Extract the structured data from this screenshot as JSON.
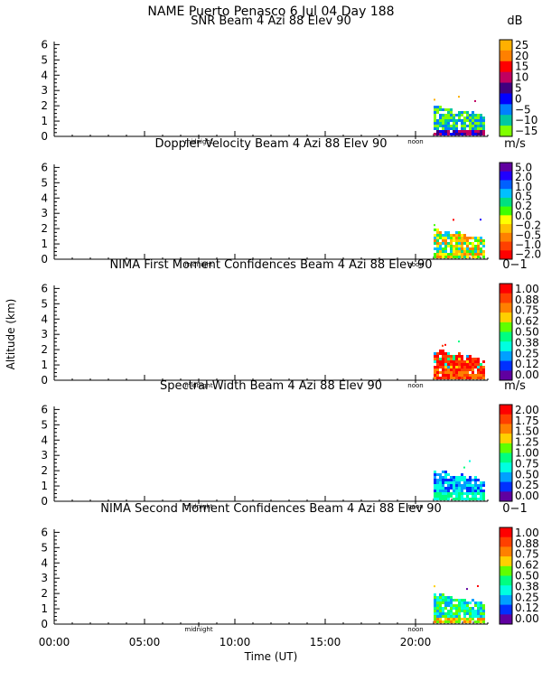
{
  "header": {
    "title_line1": "NAME Puerto Penasco   6 Jul 04 Day 188"
  },
  "axes": {
    "ylabel": "Altitude (km)",
    "xlabel": "Time (UT)",
    "x_ticks": [
      {
        "hour": 0,
        "label": "00:00"
      },
      {
        "hour": 5,
        "label": "05:00"
      },
      {
        "hour": 10,
        "label": "10:00"
      },
      {
        "hour": 15,
        "label": "15:00"
      },
      {
        "hour": 20,
        "label": "20:00"
      }
    ],
    "markers": [
      {
        "hour": 8,
        "label": "midnight"
      },
      {
        "hour": 20,
        "label": "noon"
      }
    ],
    "x_range_hours": [
      0,
      24
    ],
    "y_range_km": [
      0,
      6.2
    ],
    "y_ticks": [
      "0",
      "1",
      "2",
      "3",
      "4",
      "5",
      "6"
    ]
  },
  "chart_data": [
    {
      "type": "heatmap",
      "title": "SNR Beam 4 Azi  88 Elev 90",
      "unit": "dB",
      "colorbar_labels": [
        "25",
        "20",
        "15",
        "10",
        "5",
        "0",
        "−5",
        "−10",
        "−15"
      ],
      "colorbar_colors": [
        "#ffb000",
        "#ff8000",
        "#ff0000",
        "#c00060",
        "#40007f",
        "#0000ff",
        "#0080ff",
        "#00c8a0",
        "#80ff00"
      ],
      "data_extent": {
        "hours": [
          21,
          23.8
        ],
        "altitude_km": [
          0,
          2.6
        ]
      }
    },
    {
      "type": "heatmap",
      "title": "Doppler Velocity Beam 4 Azi  88 Elev 90",
      "unit": "m/s",
      "colorbar_labels": [
        "5.0",
        "2.0",
        "1.0",
        "0.5",
        "0.2",
        "0.0",
        "−0.2",
        "−0.5",
        "−1.0",
        "−2.0"
      ],
      "colorbar_colors": [
        "#6000a0",
        "#2000ff",
        "#0060ff",
        "#00c0ff",
        "#00e080",
        "#40ff00",
        "#ffff00",
        "#ffc000",
        "#ff8000",
        "#ff4000",
        "#ff0000"
      ],
      "data_extent": {
        "hours": [
          21,
          23.8
        ],
        "altitude_km": [
          0,
          2.6
        ]
      }
    },
    {
      "type": "heatmap",
      "title": "NIMA First Moment Confidences Beam 4 Azi  88 Elev 90",
      "unit": "0−1",
      "colorbar_labels": [
        "1.00",
        "0.88",
        "0.75",
        "0.62",
        "0.50",
        "0.38",
        "0.25",
        "0.12",
        "0.00"
      ],
      "colorbar_colors": [
        "#ff0000",
        "#ff4000",
        "#ff8000",
        "#ffd000",
        "#60ff00",
        "#00ff80",
        "#00ffe0",
        "#00a0ff",
        "#0030ff",
        "#6000a0"
      ],
      "data_extent": {
        "hours": [
          21,
          23.8
        ],
        "altitude_km": [
          0,
          2.6
        ]
      }
    },
    {
      "type": "heatmap",
      "title": "Spectral Width Beam 4 Azi  88 Elev 90",
      "unit": "m/s",
      "colorbar_labels": [
        "2.00",
        "1.75",
        "1.50",
        "1.25",
        "1.00",
        "0.75",
        "0.50",
        "0.25",
        "0.00"
      ],
      "colorbar_colors": [
        "#ff0000",
        "#ff4000",
        "#ff8000",
        "#ffd000",
        "#60ff00",
        "#00ff80",
        "#00ffe0",
        "#00a0ff",
        "#0030ff",
        "#6000a0"
      ],
      "data_extent": {
        "hours": [
          21,
          23.8
        ],
        "altitude_km": [
          0,
          2.6
        ]
      }
    },
    {
      "type": "heatmap",
      "title": "NIMA Second Moment Confidences Beam 4 Azi  88 Elev 90",
      "unit": "0−1",
      "colorbar_labels": [
        "1.00",
        "0.88",
        "0.75",
        "0.62",
        "0.50",
        "0.38",
        "0.25",
        "0.12",
        "0.00"
      ],
      "colorbar_colors": [
        "#ff0000",
        "#ff4000",
        "#ff8000",
        "#ffd000",
        "#60ff00",
        "#00ff80",
        "#00ffe0",
        "#00a0ff",
        "#0030ff",
        "#6000a0"
      ],
      "data_extent": {
        "hours": [
          21,
          23.8
        ],
        "altitude_km": [
          0,
          2.6
        ]
      }
    }
  ]
}
